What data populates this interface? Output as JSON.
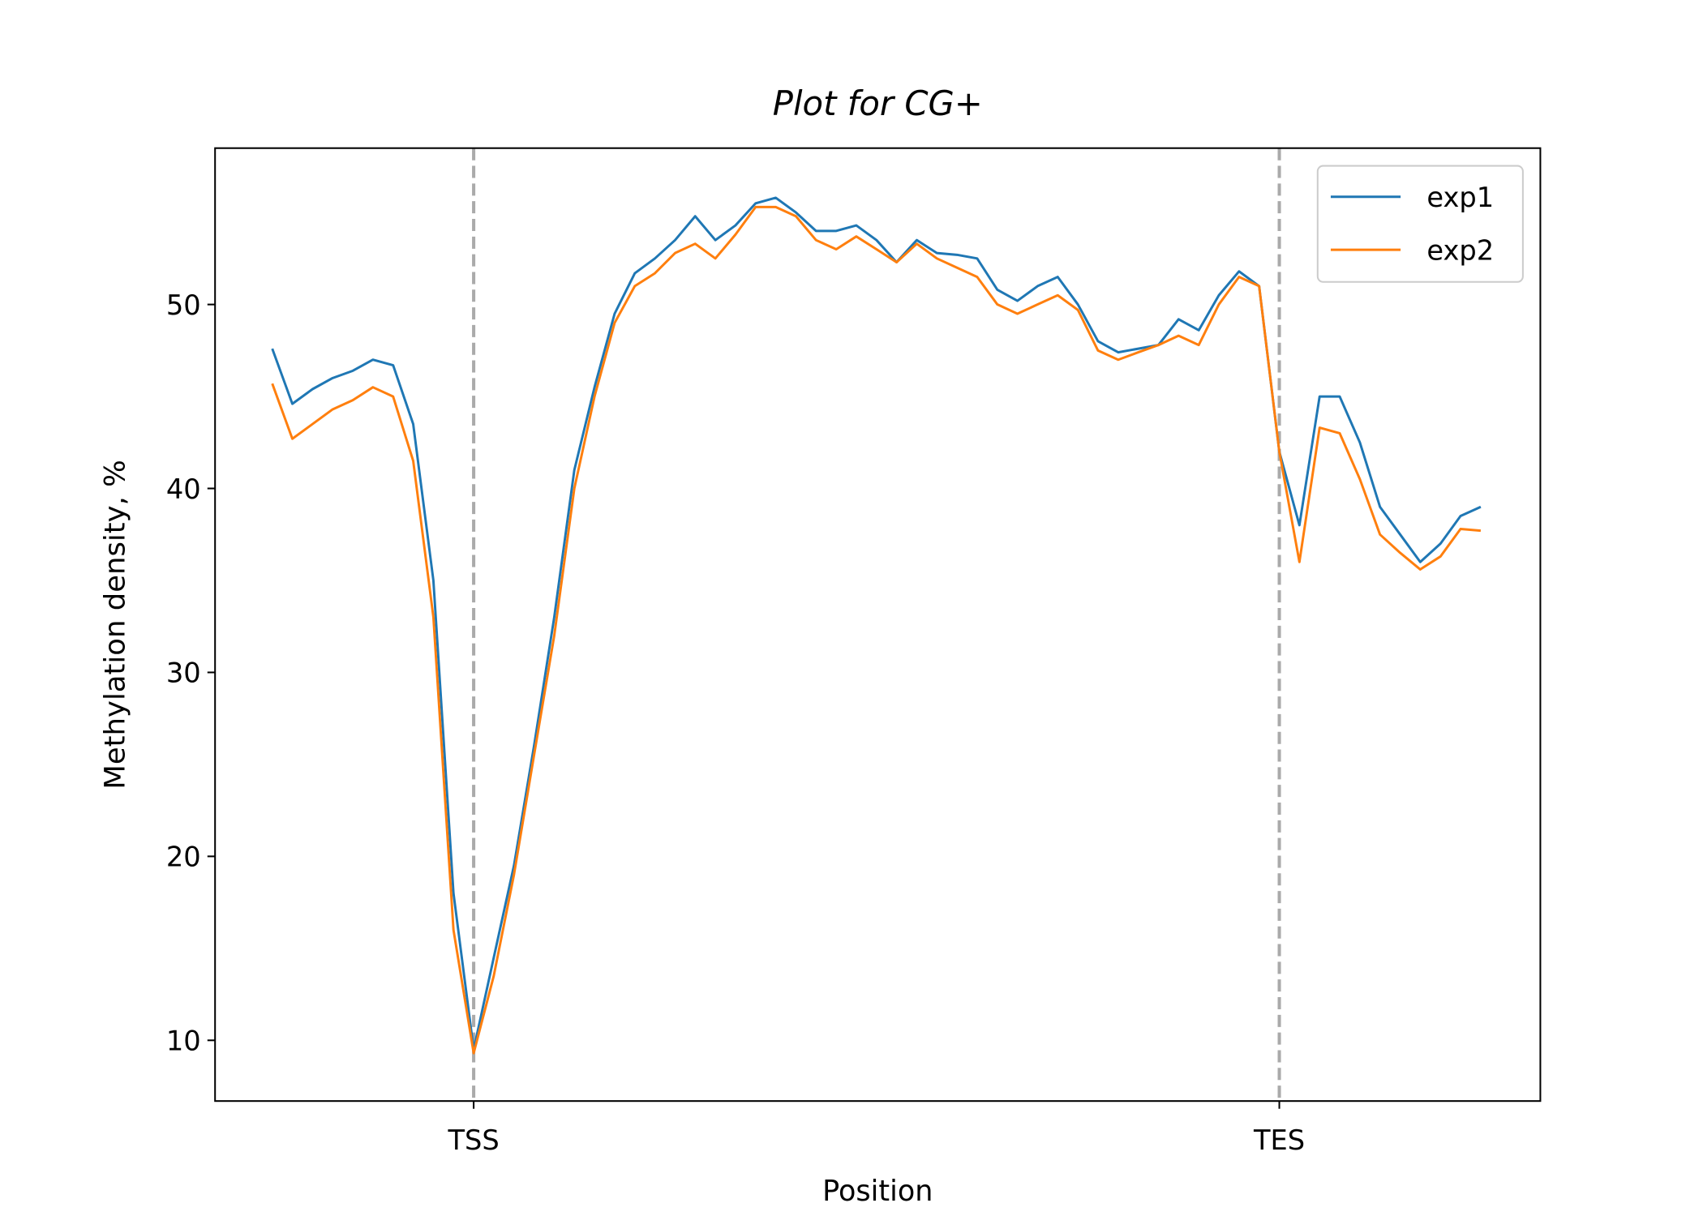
{
  "chart_data": {
    "type": "line",
    "title": "Plot for CG+",
    "xlabel": "Position",
    "ylabel": "Methylation density, %",
    "x": [
      -25,
      -22.5,
      -20,
      -17.5,
      -15,
      -12.5,
      -10,
      -7.5,
      -5,
      -2.5,
      0,
      2.5,
      5,
      7.5,
      10,
      12.5,
      15,
      17.5,
      20,
      22.5,
      25,
      27.5,
      30,
      32.5,
      35,
      37.5,
      40,
      42.5,
      45,
      47.5,
      50,
      52.5,
      55,
      57.5,
      60,
      62.5,
      65,
      67.5,
      70,
      72.5,
      75,
      77.5,
      80,
      82.5,
      85,
      87.5,
      90,
      92.5,
      95,
      97.5,
      100,
      102.5,
      105,
      107.5,
      110,
      112.5,
      115,
      117.5,
      120,
      122.5,
      125
    ],
    "series": [
      {
        "name": "exp1",
        "color": "#1f77b4",
        "values": [
          47.6,
          44.6,
          45.4,
          46.0,
          46.4,
          47.0,
          46.7,
          43.5,
          35,
          18,
          9.5,
          14.5,
          19.5,
          26,
          33,
          41,
          45.5,
          49.5,
          51.7,
          52.5,
          53.5,
          54.8,
          53.5,
          54.3,
          55.5,
          55.8,
          55.0,
          54.0,
          54.0,
          54.3,
          53.5,
          52.3,
          53.5,
          52.8,
          52.7,
          52.5,
          50.8,
          50.2,
          51.0,
          51.5,
          50.0,
          48.0,
          47.4,
          47.6,
          47.8,
          49.2,
          48.6,
          50.5,
          51.8,
          51.0,
          42,
          38,
          45.0,
          45.0,
          42.5,
          39.0,
          37.5,
          36.0,
          37.0,
          38.5,
          39.0
        ]
      },
      {
        "name": "exp2",
        "color": "#ff7f0e",
        "values": [
          45.7,
          42.7,
          43.5,
          44.3,
          44.8,
          45.5,
          45.0,
          41.5,
          33,
          16,
          9.3,
          13.5,
          19.0,
          25.5,
          32,
          40,
          45,
          49,
          51.0,
          51.7,
          52.8,
          53.3,
          52.5,
          53.8,
          55.3,
          55.3,
          54.8,
          53.5,
          53.0,
          53.7,
          53.0,
          52.3,
          53.3,
          52.5,
          52.0,
          51.5,
          50.0,
          49.5,
          50.0,
          50.5,
          49.7,
          47.5,
          47.0,
          47.4,
          47.8,
          48.3,
          47.8,
          50.0,
          51.5,
          51.0,
          42,
          36,
          43.3,
          43.0,
          40.5,
          37.5,
          36.5,
          35.6,
          36.3,
          37.8,
          37.7
        ]
      }
    ],
    "xlim": [
      -32.1,
      132.4
    ],
    "ylim": [
      6.7,
      58.5
    ],
    "xticks": [
      {
        "value": 0,
        "label": "TSS"
      },
      {
        "value": 100,
        "label": "TES"
      }
    ],
    "yticks": [
      10,
      20,
      30,
      40,
      50
    ],
    "vlines_at_xticks": true,
    "legend": "upper right"
  }
}
